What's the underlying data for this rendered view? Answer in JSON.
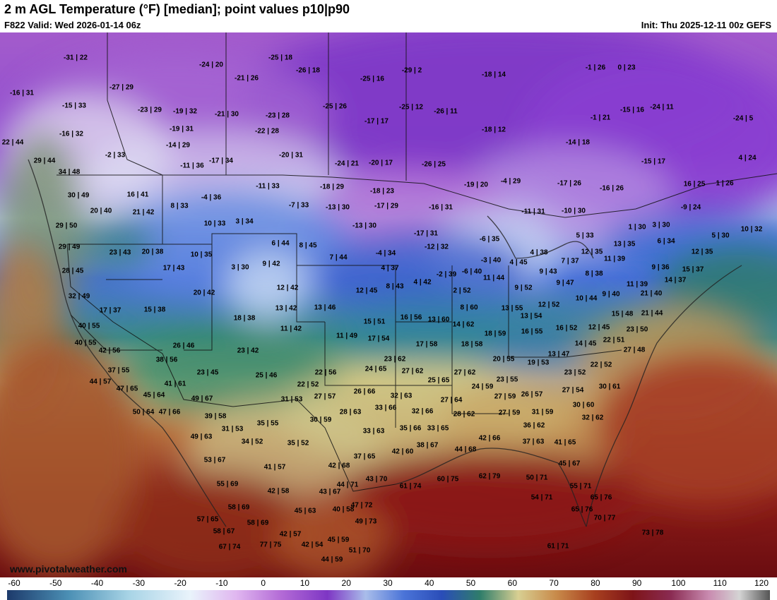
{
  "header": {
    "title": "2 m AGL Temperature (°F) [median]; point values p10|p90",
    "valid": "F822 Valid: Wed 2026-01-14 06z",
    "init": "Init: Thu 2025-12-11 00z GEFS"
  },
  "footer": {
    "site": "www.pivotalweather.com",
    "watermark": "pivotal weather"
  },
  "colorbar": {
    "ticks": [
      "-60",
      "-50",
      "-40",
      "-30",
      "-20",
      "-10",
      "0",
      "10",
      "20",
      "30",
      "40",
      "50",
      "60",
      "70",
      "80",
      "90",
      "100",
      "110",
      "120"
    ]
  },
  "point_values": [
    "-31 | 22",
    "-25 | 18",
    "-24 | 20",
    "-26 | 18",
    "-21 | 26",
    "-25 | 16",
    "-29 | 2",
    "-18 | 14",
    "-1 | 26",
    "0 | 23",
    "-16 | 31",
    "-27 | 29",
    "-15 | 33",
    "-23 | 29",
    "-19 | 32",
    "-21 | 30",
    "-23 | 28",
    "-25 | 26",
    "-25 | 12",
    "-26 | 11",
    "-17 | 17",
    "-18 | 12",
    "-1 | 21",
    "-15 | 16",
    "-24 | 11",
    "-24 | 5",
    "-16 | 32",
    "-19 | 31",
    "-22 | 28",
    "22 | 44",
    "-14 | 29",
    "-2 | 33",
    "-20 | 31",
    "-14 | 18",
    "29 | 44",
    "-11 | 36",
    "-17 | 34",
    "-24 | 21",
    "-20 | 17",
    "-26 | 25",
    "-15 | 17",
    "4 | 24",
    "34 | 48",
    "16 | 41",
    "-18 | 29",
    "-19 | 20",
    "-4 | 29",
    "-17 | 26",
    "-16 | 26",
    "16 | 25",
    "1 | 26",
    "-11 | 33",
    "30 | 49",
    "-4 | 36",
    "-18 | 23",
    "-17 | 29",
    "8 | 33",
    "-7 | 33",
    "-13 | 30",
    "-16 | 31",
    "-9 | 24",
    "20 | 40",
    "21 | 42",
    "10 | 33",
    "3 | 34",
    "-11 | 31",
    "-10 | 30",
    "1 | 30",
    "3 | 30",
    "29 | 50",
    "-13 | 30",
    "-17 | 31",
    "5 | 33",
    "10 | 32",
    "6 | 44",
    "8 | 45",
    "-6 | 35",
    "5 | 30",
    "29 | 49",
    "-12 | 32",
    "6 | 34",
    "23 | 43",
    "20 | 38",
    "10 | 35",
    "7 | 44",
    "-4 | 34",
    "4 | 38",
    "12 | 35",
    "13 | 35",
    "12 | 35",
    "3 | 30",
    "9 | 42",
    "-3 | 40",
    "4 | 45",
    "7 | 37",
    "11 | 39",
    "17 | 43",
    "4 | 37",
    "28 | 45",
    "8 | 43",
    "9 | 43",
    "8 | 38",
    "9 | 36",
    "15 | 37",
    "4 | 42",
    "-2 | 39",
    "-6 | 40",
    "11 | 44",
    "14 | 37",
    "12 | 42",
    "12 | 45",
    "9 | 47",
    "11 | 39",
    "32 | 49",
    "20 | 42",
    "2 | 52",
    "9 | 52",
    "10 | 44",
    "9 | 40",
    "21 | 40",
    "13 | 42",
    "13 | 46",
    "8 | 60",
    "13 | 55",
    "12 | 52",
    "17 | 37",
    "15 | 38",
    "18 | 38",
    "15 | 51",
    "16 | 56",
    "13 | 60",
    "13 | 54",
    "15 | 48",
    "21 | 44",
    "40 | 55",
    "11 | 42",
    "14 | 62",
    "16 | 55",
    "16 | 52",
    "12 | 45",
    "23 | 50",
    "11 | 49",
    "17 | 54",
    "18 | 59",
    "40 | 55",
    "26 | 46",
    "17 | 58",
    "18 | 58",
    "14 | 45",
    "22 | 51",
    "42 | 56",
    "23 | 42",
    "13 | 47",
    "27 | 48",
    "38 | 56",
    "23 | 62",
    "20 | 55",
    "19 | 53",
    "22 | 52",
    "37 | 55",
    "23 | 45",
    "22 | 56",
    "24 | 65",
    "27 | 62",
    "27 | 62",
    "23 | 52",
    "44 | 57",
    "25 | 46",
    "41 | 61",
    "22 | 52",
    "25 | 65",
    "24 | 59",
    "23 | 55",
    "47 | 65",
    "45 | 64",
    "26 | 66",
    "26 | 57",
    "27 | 54",
    "30 | 61",
    "49 | 67",
    "31 | 53",
    "27 | 57",
    "32 | 63",
    "27 | 64",
    "27 | 59",
    "50 | 64",
    "47 | 66",
    "33 | 66",
    "30 | 60",
    "39 | 58",
    "28 | 63",
    "32 | 66",
    "28 | 62",
    "27 | 59",
    "31 | 59",
    "32 | 62",
    "35 | 55",
    "30 | 59",
    "36 | 62",
    "31 | 53",
    "49 | 63",
    "33 | 63",
    "35 | 66",
    "33 | 65",
    "34 | 52",
    "35 | 52",
    "42 | 66",
    "37 | 63",
    "41 | 65",
    "38 | 67",
    "44 | 68",
    "42 | 60",
    "53 | 67",
    "45 | 67",
    "41 | 57",
    "37 | 65",
    "42 | 68",
    "62 | 79",
    "60 | 75",
    "55 | 69",
    "44 | 71",
    "43 | 70",
    "61 | 74",
    "50 | 71",
    "55 | 71",
    "42 | 58",
    "43 | 67",
    "58 | 69",
    "47 | 72",
    "54 | 71",
    "65 | 76",
    "65 | 76",
    "45 | 63",
    "40 | 58",
    "57 | 65",
    "58 | 69",
    "49 | 73",
    "70 | 77",
    "42 | 57",
    "58 | 67",
    "45 | 59",
    "73 | 78",
    "67 | 74",
    "77 | 75",
    "42 | 54",
    "51 | 70",
    "61 | 71",
    "44 | 59"
  ]
}
